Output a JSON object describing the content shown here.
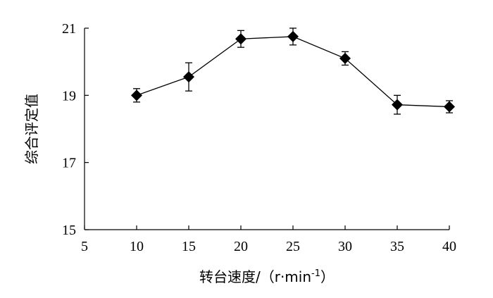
{
  "chart_data": {
    "type": "line",
    "title": "",
    "xlabel": "转台速度/（r·min⁻¹）",
    "xlabel_parts": {
      "main": "转台速度/（r·min",
      "sup": "-1",
      "end": "）"
    },
    "ylabel": "综合评定值",
    "xlim": [
      5,
      40
    ],
    "ylim": [
      15,
      21
    ],
    "xticks": [
      5,
      10,
      15,
      20,
      25,
      30,
      35,
      40
    ],
    "yticks": [
      15,
      17,
      19,
      21
    ],
    "grid": false,
    "legend": "none",
    "series": [
      {
        "x": [
          10,
          15,
          20,
          25,
          30,
          35,
          40
        ],
        "y": [
          19.0,
          19.55,
          20.68,
          20.75,
          20.1,
          18.72,
          18.66
        ],
        "error": [
          0.2,
          0.42,
          0.25,
          0.25,
          0.2,
          0.28,
          0.18
        ],
        "marker": "diamond",
        "color": "#000000"
      }
    ]
  }
}
